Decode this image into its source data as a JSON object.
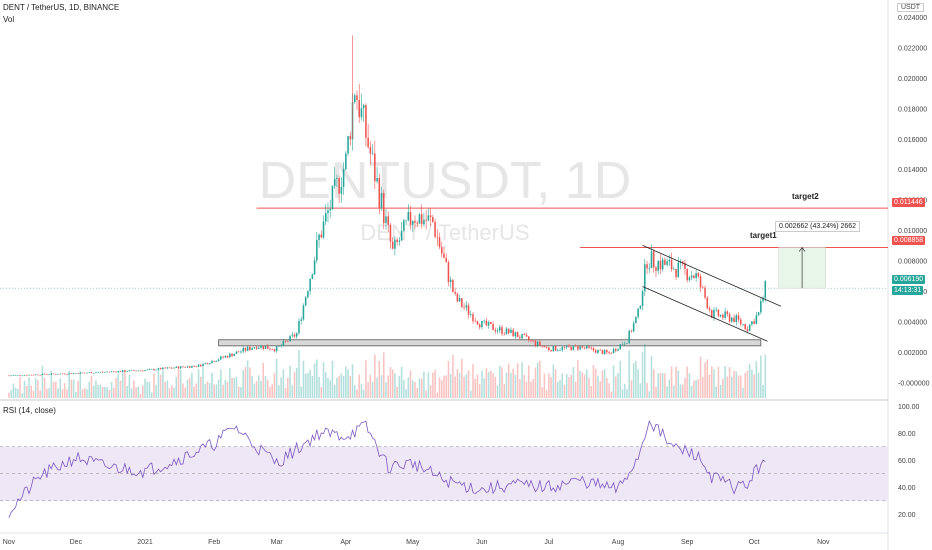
{
  "header": {
    "symbol_line": "DENT / TetherUS, 1D, BINANCE",
    "volume_label": "Vol",
    "currency_badge": "USDT",
    "rsi_label": "RSI (14, close)"
  },
  "watermark": {
    "ticker": "DENTUSDT, 1D",
    "name": "DENT / TetherUS"
  },
  "annotations": {
    "target1": "target1",
    "target2": "target2",
    "measure": "0.002662 (43.24%) 2662"
  },
  "price_tags": {
    "target2_price": "0.011446",
    "target1_price": "0.008858",
    "last_price": "0.006190",
    "countdown": "14:13:31"
  },
  "colors": {
    "up": "#26a69a",
    "down": "#ef5350",
    "target_line": "#ef5350",
    "rsi_line": "#7e57c2",
    "rsi_band": "#ede7f6",
    "last_price_tag": "#26a69a"
  },
  "chart_data": [
    {
      "type": "candlestick",
      "title": "DENT / TetherUS, 1D, BINANCE",
      "y_axis_ticks": [
        "0.024000",
        "0.022000",
        "0.020000",
        "0.018000",
        "0.016000",
        "0.014000",
        "0.012000",
        "0.010000",
        "0.008000",
        "0.006000",
        "0.004000",
        "0.002000",
        "-0.000000"
      ],
      "x_axis_ticks": [
        "Nov",
        "Dec",
        "2021",
        "Feb",
        "Mar",
        "Apr",
        "May",
        "Jun",
        "Jul",
        "Aug",
        "Sep",
        "Oct",
        "Nov"
      ],
      "ylim": [
        -0.0005,
        0.024
      ],
      "price_path": [
        {
          "date": "2020-11-01",
          "price": 0.00045
        },
        {
          "date": "2020-12-01",
          "price": 0.0006
        },
        {
          "date": "2021-01-01",
          "price": 0.0008
        },
        {
          "date": "2021-01-25",
          "price": 0.0011
        },
        {
          "date": "2021-02-08",
          "price": 0.0018
        },
        {
          "date": "2021-02-20",
          "price": 0.0024
        },
        {
          "date": "2021-03-01",
          "price": 0.0022
        },
        {
          "date": "2021-03-10",
          "price": 0.0032
        },
        {
          "date": "2021-03-20",
          "price": 0.0095
        },
        {
          "date": "2021-04-01",
          "price": 0.0145
        },
        {
          "date": "2021-04-05",
          "price": 0.0195
        },
        {
          "date": "2021-04-12",
          "price": 0.015
        },
        {
          "date": "2021-04-22",
          "price": 0.0085
        },
        {
          "date": "2021-05-01",
          "price": 0.011
        },
        {
          "date": "2021-05-10",
          "price": 0.0105
        },
        {
          "date": "2021-05-20",
          "price": 0.0055
        },
        {
          "date": "2021-06-01",
          "price": 0.0038
        },
        {
          "date": "2021-06-15",
          "price": 0.0032
        },
        {
          "date": "2021-07-01",
          "price": 0.0022
        },
        {
          "date": "2021-07-15",
          "price": 0.0023
        },
        {
          "date": "2021-07-28",
          "price": 0.0019
        },
        {
          "date": "2021-08-05",
          "price": 0.0028
        },
        {
          "date": "2021-08-10",
          "price": 0.0045
        },
        {
          "date": "2021-08-14",
          "price": 0.0081
        },
        {
          "date": "2021-08-25",
          "price": 0.0076
        },
        {
          "date": "2021-09-05",
          "price": 0.007
        },
        {
          "date": "2021-09-12",
          "price": 0.0045
        },
        {
          "date": "2021-09-22",
          "price": 0.0042
        },
        {
          "date": "2021-09-28",
          "price": 0.0036
        },
        {
          "date": "2021-10-03",
          "price": 0.0045
        },
        {
          "date": "2021-10-06",
          "price": 0.00619
        }
      ],
      "support_zone": [
        0.0024,
        0.0028
      ],
      "target1": 0.008858,
      "target2": 0.011446,
      "last": 0.00619
    },
    {
      "type": "line",
      "title": "RSI (14, close)",
      "y_axis_ticks": [
        "100.00",
        "80.00",
        "60.00",
        "40.00",
        "20.00"
      ],
      "ylim": [
        15,
        100
      ],
      "band": [
        30,
        70
      ],
      "midline": 50,
      "series": [
        {
          "values": [
            {
              "date": "2020-11-01",
              "v": 22
            },
            {
              "date": "2020-11-15",
              "v": 48
            },
            {
              "date": "2020-12-01",
              "v": 62
            },
            {
              "date": "2020-12-15",
              "v": 55
            },
            {
              "date": "2021-01-01",
              "v": 52
            },
            {
              "date": "2021-01-15",
              "v": 60
            },
            {
              "date": "2021-02-01",
              "v": 72
            },
            {
              "date": "2021-02-10",
              "v": 85
            },
            {
              "date": "2021-02-20",
              "v": 70
            },
            {
              "date": "2021-03-01",
              "v": 58
            },
            {
              "date": "2021-03-10",
              "v": 68
            },
            {
              "date": "2021-03-20",
              "v": 80
            },
            {
              "date": "2021-04-01",
              "v": 78
            },
            {
              "date": "2021-04-10",
              "v": 85
            },
            {
              "date": "2021-04-20",
              "v": 55
            },
            {
              "date": "2021-05-01",
              "v": 58
            },
            {
              "date": "2021-05-15",
              "v": 45
            },
            {
              "date": "2021-06-01",
              "v": 38
            },
            {
              "date": "2021-06-15",
              "v": 42
            },
            {
              "date": "2021-07-01",
              "v": 40
            },
            {
              "date": "2021-07-15",
              "v": 45
            },
            {
              "date": "2021-08-01",
              "v": 38
            },
            {
              "date": "2021-08-10",
              "v": 62
            },
            {
              "date": "2021-08-15",
              "v": 90
            },
            {
              "date": "2021-08-25",
              "v": 70
            },
            {
              "date": "2021-09-05",
              "v": 64
            },
            {
              "date": "2021-09-12",
              "v": 48
            },
            {
              "date": "2021-09-22",
              "v": 40
            },
            {
              "date": "2021-09-28",
              "v": 42
            },
            {
              "date": "2021-10-03",
              "v": 55
            },
            {
              "date": "2021-10-06",
              "v": 63
            }
          ]
        }
      ]
    }
  ]
}
